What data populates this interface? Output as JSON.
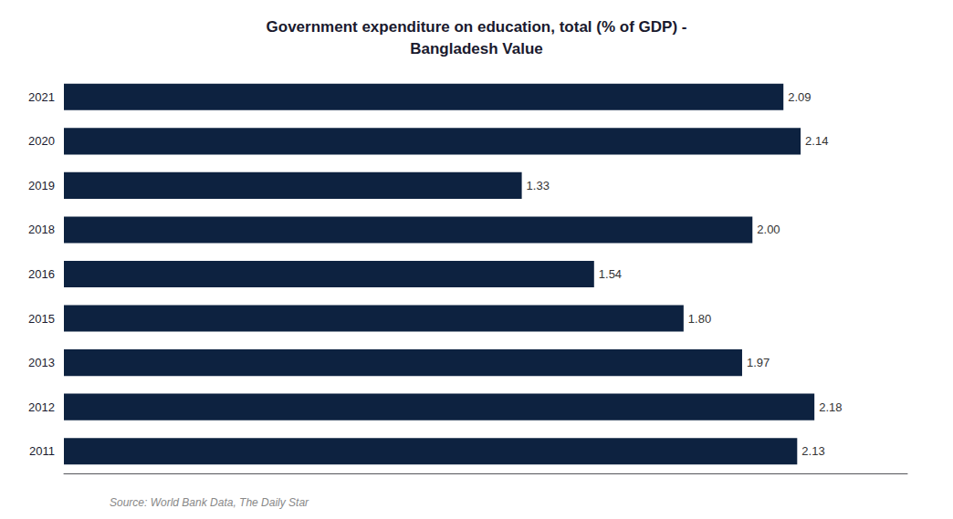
{
  "chart_data": {
    "type": "bar",
    "orientation": "horizontal",
    "title": "Government expenditure on education, total (% of GDP) -\nBangladesh Value",
    "categories": [
      "2021",
      "2020",
      "2019",
      "2018",
      "2016",
      "2015",
      "2013",
      "2012",
      "2011"
    ],
    "values": [
      2.09,
      2.14,
      1.33,
      2.0,
      1.54,
      1.8,
      1.97,
      2.18,
      2.13
    ],
    "value_labels": [
      "2.09",
      "2.14",
      "1.33",
      "2.00",
      "1.54",
      "1.80",
      "1.97",
      "2.18",
      "2.13"
    ],
    "data_labels": true,
    "color": "#0d2240",
    "xlim": [
      0,
      2.45
    ],
    "tick_labels": "y",
    "grid": false,
    "annotations": [
      "Source: World Bank Data, The Daily Star"
    ]
  }
}
